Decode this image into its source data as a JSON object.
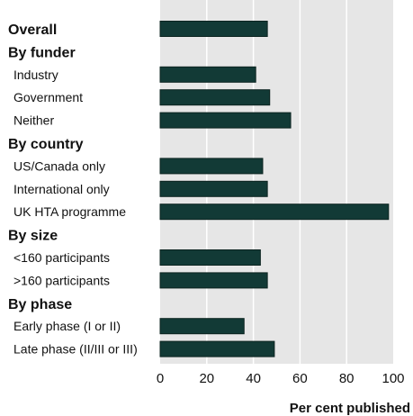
{
  "chart_data": {
    "type": "bar",
    "orientation": "horizontal",
    "xlabel": "Per cent published",
    "xlim": [
      0,
      100
    ],
    "x_ticks": [
      "0",
      "20",
      "40",
      "60",
      "80",
      "100"
    ],
    "grid": true,
    "colors": {
      "bar": "#123a36",
      "bar_edge": "#0c2420",
      "plot_bg": "#e6e6e6",
      "grid": "#ffffff"
    },
    "rows": [
      {
        "label": "Overall",
        "group_header": true,
        "value": 46
      },
      {
        "label": "By funder",
        "group_header": true,
        "value": null
      },
      {
        "label": "Industry",
        "group_header": false,
        "value": 41
      },
      {
        "label": "Government",
        "group_header": false,
        "value": 47
      },
      {
        "label": "Neither",
        "group_header": false,
        "value": 56
      },
      {
        "label": "By country",
        "group_header": true,
        "value": null
      },
      {
        "label": "US/Canada only",
        "group_header": false,
        "value": 44
      },
      {
        "label": "International only",
        "group_header": false,
        "value": 46
      },
      {
        "label": "UK HTA programme",
        "group_header": false,
        "value": 98
      },
      {
        "label": "By size",
        "group_header": true,
        "value": null
      },
      {
        "label": "<160 participants",
        "group_header": false,
        "value": 43
      },
      {
        "label": ">160 participants",
        "group_header": false,
        "value": 46
      },
      {
        "label": "By phase",
        "group_header": true,
        "value": null
      },
      {
        "label": "Early phase (I or II)",
        "group_header": false,
        "value": 36
      },
      {
        "label": "Late phase (II/III or III)",
        "group_header": false,
        "value": 49
      }
    ]
  }
}
